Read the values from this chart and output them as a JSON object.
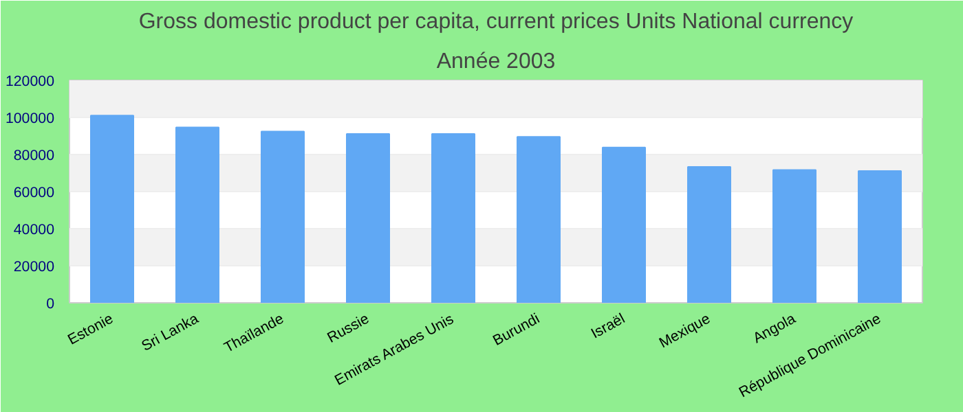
{
  "chart_data": {
    "type": "bar",
    "title": "Gross domestic product per capita, current prices Units National currency",
    "subtitle": "Année 2003",
    "categories": [
      "Estonie",
      "Sri Lanka",
      "Thaïlande",
      "Russie",
      "Emirats Arabes Unis",
      "Burundi",
      "Israël",
      "Mexique",
      "Angola",
      "République Dominicaine"
    ],
    "values": [
      101000,
      94600,
      92400,
      91100,
      91100,
      89500,
      83800,
      73300,
      71700,
      71100
    ],
    "color": "#60a8f4",
    "ylim": [
      0,
      120000
    ],
    "yticks": [
      0,
      20000,
      40000,
      60000,
      80000,
      100000,
      120000
    ],
    "grid": "y"
  }
}
